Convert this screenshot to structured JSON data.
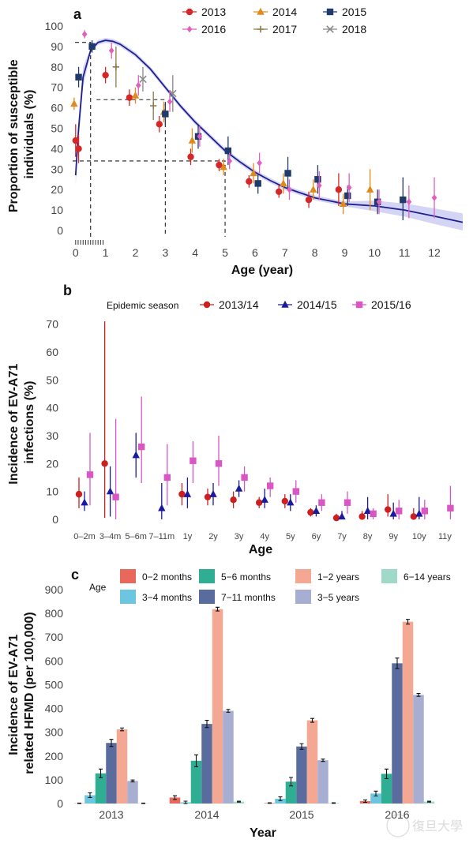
{
  "colors": {
    "2013": "#d62728",
    "2014": "#e08a1e",
    "2015": "#1f3a6b",
    "2016": "#e05fc0",
    "2017": "#8c7a4a",
    "2018": "#888888",
    "season_2013_14": "#cc1f1f",
    "season_2014_15": "#1a1aa0",
    "season_2015_16": "#d957c4",
    "curve": "#1f1f8f",
    "band": "#c9cbf1"
  },
  "chart_data": [
    {
      "panel_label": "a",
      "type": "scatter",
      "xlabel": "Age (year)",
      "ylabel": "Proportion of susceptible individuals  (%)",
      "xlim": [
        -0.1,
        12.95
      ],
      "ylim": [
        0,
        100
      ],
      "xticks": [
        0,
        1,
        2,
        3,
        4,
        5,
        6,
        7,
        8,
        9,
        10,
        11,
        12
      ],
      "yticks": [
        0,
        10,
        20,
        30,
        40,
        50,
        60,
        70,
        80,
        90,
        100
      ],
      "legend": [
        "2013",
        "2014",
        "2015",
        "2016",
        "2017",
        "2018"
      ],
      "legend_position": "top",
      "series": [
        {
          "name": "2013",
          "marker": "circle",
          "color": "2013",
          "points": [
            [
              0.0,
              44,
              36,
              52
            ],
            [
              0.1,
              40,
              33,
              47
            ],
            [
              1.0,
              76,
              72,
              80
            ],
            [
              1.8,
              65,
              61,
              69
            ],
            [
              2.8,
              52,
              48,
              56
            ],
            [
              3.85,
              36,
              32,
              40
            ],
            [
              4.8,
              32,
              29,
              35
            ],
            [
              5.8,
              24,
              21,
              27
            ],
            [
              6.8,
              19,
              16,
              22
            ],
            [
              7.8,
              15,
              11,
              19
            ],
            [
              8.8,
              20,
              12,
              28
            ]
          ]
        },
        {
          "name": "2014",
          "marker": "triangle",
          "color": "2014",
          "points": [
            [
              -0.05,
              62,
              59,
              65
            ],
            [
              2.0,
              66,
              62,
              70
            ],
            [
              2.95,
              58,
              53,
              63
            ],
            [
              3.9,
              44,
              38,
              50
            ],
            [
              4.95,
              31,
              27,
              35
            ],
            [
              5.95,
              28,
              23,
              33
            ],
            [
              6.95,
              23,
              18,
              28
            ],
            [
              7.95,
              20,
              15,
              25
            ],
            [
              8.95,
              13,
              8,
              18
            ],
            [
              9.85,
              20,
              10,
              30
            ]
          ]
        },
        {
          "name": "2015",
          "marker": "square",
          "color": "2015",
          "points": [
            [
              0.1,
              75,
              70,
              80
            ],
            [
              0.55,
              90,
              87,
              93
            ],
            [
              3.0,
              57,
              52,
              62
            ],
            [
              4.1,
              46,
              40,
              52
            ],
            [
              5.1,
              39,
              32,
              46
            ],
            [
              6.1,
              23,
              18,
              28
            ],
            [
              7.1,
              28,
              20,
              36
            ],
            [
              8.1,
              25,
              18,
              32
            ],
            [
              9.1,
              17,
              12,
              22
            ],
            [
              10.1,
              14,
              8,
              20
            ],
            [
              10.95,
              15,
              5,
              26
            ]
          ]
        },
        {
          "name": "2016",
          "marker": "diamond",
          "color": "2016",
          "points": [
            [
              0.3,
              96,
              94,
              98
            ],
            [
              1.2,
              88,
              84,
              92
            ],
            [
              2.1,
              71,
              66,
              76
            ],
            [
              3.15,
              63,
              58,
              68
            ],
            [
              4.15,
              46,
              41,
              51
            ],
            [
              5.15,
              34,
              30,
              38
            ],
            [
              6.15,
              33,
              28,
              38
            ],
            [
              7.15,
              20,
              15,
              25
            ],
            [
              8.15,
              22,
              15,
              29
            ],
            [
              9.15,
              21,
              14,
              28
            ],
            [
              10.15,
              14,
              8,
              20
            ],
            [
              11.15,
              14,
              6,
              22
            ],
            [
              12.0,
              16,
              6,
              26
            ]
          ]
        },
        {
          "name": "2017",
          "marker": "plus",
          "color": "2017",
          "points": [
            [
              1.35,
              80,
              70,
              90
            ],
            [
              2.6,
              61,
              54,
              68
            ]
          ]
        },
        {
          "name": "2018",
          "marker": "cross",
          "color": "2018",
          "points": [
            [
              2.25,
              74,
              68,
              80
            ],
            [
              3.25,
              67,
              58,
              76
            ]
          ]
        }
      ],
      "fitted_curve": [
        [
          0.0,
          27
        ],
        [
          0.1,
          50
        ],
        [
          0.25,
          75
        ],
        [
          0.5,
          88
        ],
        [
          0.75,
          92
        ],
        [
          1.0,
          93
        ],
        [
          1.25,
          92.5
        ],
        [
          1.5,
          91
        ],
        [
          2.0,
          86
        ],
        [
          2.5,
          79
        ],
        [
          3.0,
          70
        ],
        [
          3.5,
          61
        ],
        [
          4.0,
          53
        ],
        [
          4.5,
          46
        ],
        [
          5.0,
          39
        ],
        [
          5.5,
          33.5
        ],
        [
          6.0,
          28.5
        ],
        [
          6.5,
          24.5
        ],
        [
          7.0,
          21
        ],
        [
          7.5,
          18.5
        ],
        [
          8.0,
          16
        ],
        [
          9.0,
          13
        ],
        [
          10.0,
          12
        ],
        [
          11.0,
          10
        ],
        [
          12.0,
          7
        ],
        [
          12.95,
          4
        ]
      ],
      "reference_lines": [
        [
          0.5,
          92
        ],
        [
          1.0,
          64
        ],
        [
          3.0,
          64
        ],
        [
          3.0,
          34
        ],
        [
          5.0,
          34
        ]
      ]
    },
    {
      "panel_label": "b",
      "type": "scatter",
      "xlabel": "Age",
      "ylabel": "Incidence of EV-A71 infections (%)",
      "ylim": [
        -2,
        73
      ],
      "yticks": [
        0,
        10,
        20,
        30,
        40,
        50,
        60,
        70
      ],
      "categories": [
        "0–2m",
        "3–4m",
        "5–6m",
        "7–11m",
        "1y",
        "2y",
        "3y",
        "4y",
        "5y",
        "6y",
        "7y",
        "8y",
        "9y",
        "10y",
        "11y"
      ],
      "legend_title": "Epidemic season",
      "legend": [
        "2013/14",
        "2014/15",
        "2015/16"
      ],
      "legend_position": "top",
      "series": [
        {
          "name": "2013/14",
          "marker": "circle",
          "color": "season_2013_14",
          "points": [
            [
              0,
              9,
              4,
              15
            ],
            [
              1,
              20,
              0.5,
              71
            ],
            [
              3,
              null,
              null,
              null
            ],
            [
              4,
              9,
              5,
              13
            ],
            [
              5,
              8,
              5,
              11
            ],
            [
              6,
              7,
              4,
              10
            ],
            [
              7,
              6,
              4,
              8
            ],
            [
              8,
              6.5,
              4,
              9
            ],
            [
              9,
              2.5,
              1,
              4
            ],
            [
              10,
              0.5,
              0,
              2
            ],
            [
              11,
              1,
              0,
              3
            ],
            [
              12,
              3.5,
              1,
              9
            ],
            [
              13,
              1,
              0,
              4
            ]
          ]
        },
        {
          "name": "2014/15",
          "marker": "triangle",
          "color": "season_2014_15",
          "points": [
            [
              0,
              6,
              3,
              10
            ],
            [
              1,
              10,
              1,
              19
            ],
            [
              2,
              23,
              15,
              31
            ],
            [
              3,
              4,
              0,
              13
            ],
            [
              4,
              9,
              4,
              15
            ],
            [
              5,
              9,
              5,
              13
            ],
            [
              6,
              11,
              8,
              14
            ],
            [
              7,
              7,
              4,
              11
            ],
            [
              8,
              6,
              3,
              9
            ],
            [
              9,
              3,
              1,
              5
            ],
            [
              10,
              1,
              0,
              3
            ],
            [
              11,
              3,
              0,
              8
            ],
            [
              12,
              2,
              0,
              6
            ],
            [
              13,
              2,
              0,
              8
            ]
          ]
        },
        {
          "name": "2015/16",
          "marker": "square",
          "color": "season_2015_16",
          "points": [
            [
              0,
              16,
              5,
              31
            ],
            [
              1,
              8,
              0,
              36
            ],
            [
              2,
              26,
              13,
              44
            ],
            [
              3,
              15,
              5,
              27
            ],
            [
              4,
              21,
              13,
              28
            ],
            [
              5,
              20,
              12,
              30
            ],
            [
              6,
              15,
              10,
              19
            ],
            [
              7,
              12,
              8,
              15
            ],
            [
              8,
              10,
              6,
              14
            ],
            [
              9,
              6,
              3,
              9
            ],
            [
              10,
              6,
              2,
              10
            ],
            [
              11,
              2,
              0,
              4
            ],
            [
              12,
              3,
              0,
              7
            ],
            [
              13,
              3,
              0,
              7
            ],
            [
              14,
              4,
              0,
              12
            ]
          ]
        }
      ]
    },
    {
      "panel_label": "c",
      "type": "bar",
      "xlabel": "Year",
      "ylabel": "Incidence of EV-A71 related HFMD (per 100,000)",
      "ylim": [
        0,
        900
      ],
      "yticks": [
        0,
        100,
        200,
        300,
        400,
        500,
        600,
        700,
        800,
        900
      ],
      "categories": [
        "2013",
        "2014",
        "2015",
        "2016"
      ],
      "legend_title": "Age",
      "legend_position": "top",
      "series": [
        {
          "name": "0−2 months",
          "color": "#e8695c",
          "values": [
            1,
            25,
            2,
            10
          ],
          "errors": [
            1,
            8,
            1,
            5
          ]
        },
        {
          "name": "3−4 months",
          "color": "#6cc6e0",
          "values": [
            35,
            5,
            20,
            42
          ],
          "errors": [
            10,
            5,
            8,
            10
          ]
        },
        {
          "name": "5−6 months",
          "color": "#2fae94",
          "values": [
            127,
            180,
            92,
            125
          ],
          "errors": [
            18,
            25,
            18,
            20
          ]
        },
        {
          "name": "7−11 months",
          "color": "#5a6b9e",
          "values": [
            255,
            335,
            240,
            590
          ],
          "errors": [
            15,
            15,
            12,
            22
          ]
        },
        {
          "name": "1−2 years",
          "color": "#f4a894",
          "values": [
            312,
            818,
            350,
            765
          ],
          "errors": [
            6,
            8,
            8,
            10
          ]
        },
        {
          "name": "3−5 years",
          "color": "#a8aed1",
          "values": [
            95,
            390,
            182,
            457
          ],
          "errors": [
            4,
            6,
            5,
            6
          ]
        },
        {
          "name": "6−14 years",
          "color": "#9fd9c8",
          "values": [
            1,
            8,
            2,
            8
          ],
          "errors": [
            1,
            2,
            1,
            2
          ]
        }
      ]
    }
  ],
  "watermark": "復旦大學"
}
